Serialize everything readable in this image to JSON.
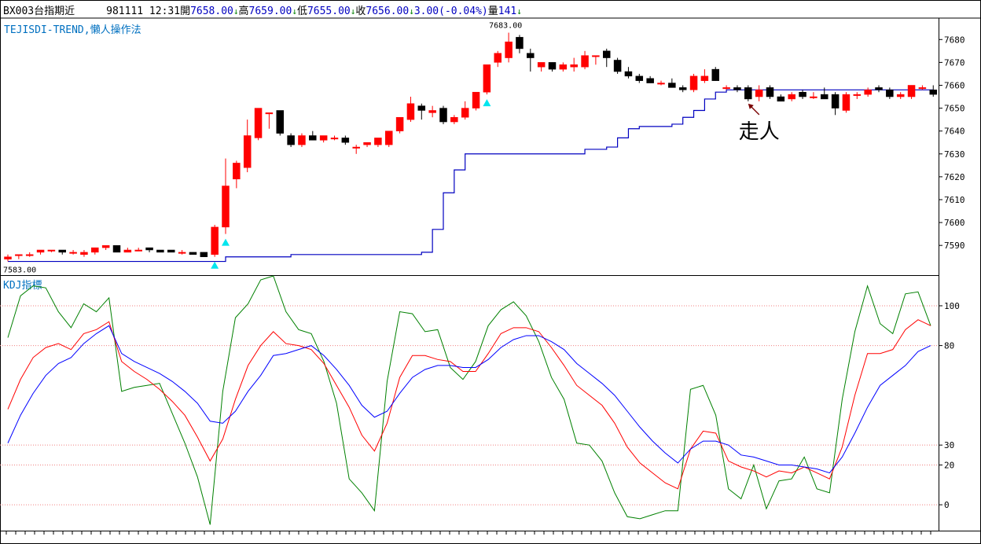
{
  "header": {
    "symbol": "BX003台指期近",
    "date_time": "981111 12:31",
    "open_label": "開",
    "open": "7658.00",
    "high_label": "高",
    "high": "7659.00",
    "low_label": "低",
    "low": "7655.00",
    "close_label": "收",
    "close": "7656.00",
    "change": "3.00(-0.04%)",
    "volume_label": "量",
    "volume": "141",
    "down_arrow": "↓"
  },
  "colors": {
    "up": "#ff0000",
    "down": "#000000",
    "trend": "#0000c0",
    "k": "#008000",
    "d": "#ff0000",
    "j": "#0000ff",
    "label": "#0070c0"
  },
  "chart_data": [
    {
      "type": "candlestick",
      "title": "TEJISDI-TREND,懶人操作法",
      "ylim": [
        7577,
        7688
      ],
      "yticks": [
        7590,
        7600,
        7610,
        7620,
        7630,
        7640,
        7650,
        7660,
        7670,
        7680
      ],
      "high_label": "7683.00",
      "low_label": "7583.00",
      "annotation": "走人",
      "candles": [
        [
          7584,
          7586,
          7583,
          7585
        ],
        [
          7586,
          7586,
          7584,
          7586
        ],
        [
          7586,
          7587,
          7585,
          7586
        ],
        [
          7587,
          7588,
          7586,
          7588
        ],
        [
          7588,
          7588,
          7587,
          7588
        ],
        [
          7588,
          7588,
          7586,
          7587
        ],
        [
          7587,
          7588,
          7586,
          7587
        ],
        [
          7586,
          7588,
          7585,
          7587
        ],
        [
          7587,
          7589,
          7586,
          7589
        ],
        [
          7589,
          7590,
          7588,
          7590
        ],
        [
          7590,
          7590,
          7587,
          7587
        ],
        [
          7587,
          7589,
          7587,
          7588
        ],
        [
          7588,
          7589,
          7588,
          7588
        ],
        [
          7589,
          7589,
          7587,
          7588
        ],
        [
          7588,
          7588,
          7587,
          7587
        ],
        [
          7588,
          7588,
          7587,
          7587
        ],
        [
          7587,
          7588,
          7586,
          7587
        ],
        [
          7587,
          7587,
          7586,
          7586
        ],
        [
          7587,
          7587,
          7585,
          7585
        ],
        [
          7586,
          7599,
          7585,
          7598
        ],
        [
          7598,
          7628,
          7595,
          7616
        ],
        [
          7619,
          7627,
          7615,
          7626
        ],
        [
          7624,
          7645,
          7622,
          7638
        ],
        [
          7637,
          7650,
          7636,
          7650
        ],
        [
          7648,
          7648,
          7641,
          7648
        ],
        [
          7649,
          7649,
          7638,
          7639
        ],
        [
          7638,
          7639,
          7633,
          7634
        ],
        [
          7634,
          7639,
          7633,
          7638
        ],
        [
          7638,
          7640,
          7636,
          7636
        ],
        [
          7636,
          7638,
          7635,
          7638
        ],
        [
          7637,
          7638,
          7636,
          7637
        ],
        [
          7637,
          7638,
          7634,
          7635
        ],
        [
          7633,
          7634,
          7630,
          7633
        ],
        [
          7634,
          7635,
          7633,
          7635
        ],
        [
          7634,
          7637,
          7633,
          7637
        ],
        [
          7634,
          7640,
          7633,
          7640
        ],
        [
          7640,
          7646,
          7639,
          7646
        ],
        [
          7645,
          7655,
          7644,
          7652
        ],
        [
          7651,
          7652,
          7645,
          7649
        ],
        [
          7648,
          7651,
          7646,
          7649
        ],
        [
          7650,
          7651,
          7643,
          7644
        ],
        [
          7644,
          7647,
          7643,
          7646
        ],
        [
          7646,
          7653,
          7645,
          7650
        ],
        [
          7650,
          7657,
          7649,
          7657
        ],
        [
          7657,
          7669,
          7656,
          7669
        ],
        [
          7670,
          7675,
          7668,
          7674
        ],
        [
          7672,
          7683,
          7670,
          7679
        ],
        [
          7681,
          7682,
          7674,
          7676
        ],
        [
          7674,
          7676,
          7666,
          7672
        ],
        [
          7668,
          7670,
          7666,
          7670
        ],
        [
          7670,
          7670,
          7666,
          7667
        ],
        [
          7667,
          7670,
          7666,
          7669
        ],
        [
          7668,
          7672,
          7666,
          7669
        ],
        [
          7668,
          7675,
          7667,
          7673
        ],
        [
          7673,
          7673,
          7669,
          7673
        ],
        [
          7675,
          7676,
          7668,
          7672
        ],
        [
          7671,
          7672,
          7665,
          7666
        ],
        [
          7666,
          7668,
          7663,
          7664
        ],
        [
          7664,
          7665,
          7661,
          7662
        ],
        [
          7663,
          7664,
          7661,
          7661
        ],
        [
          7661,
          7662,
          7660,
          7661
        ],
        [
          7661,
          7663,
          7659,
          7659
        ],
        [
          7659,
          7660,
          7657,
          7658
        ],
        [
          7658,
          7665,
          7657,
          7664
        ],
        [
          7662,
          7667,
          7661,
          7664
        ],
        [
          7667,
          7668,
          7662,
          7662
        ],
        [
          7659,
          7660,
          7658,
          7659
        ],
        [
          7659,
          7660,
          7657,
          7658
        ],
        [
          7659,
          7660,
          7653,
          7654
        ],
        [
          7655,
          7660,
          7653,
          7658
        ],
        [
          7659,
          7660,
          7654,
          7655
        ],
        [
          7655,
          7656,
          7653,
          7653
        ],
        [
          7654,
          7657,
          7653,
          7656
        ],
        [
          7657,
          7658,
          7654,
          7655
        ],
        [
          7655,
          7657,
          7654,
          7655
        ],
        [
          7656,
          7659,
          7654,
          7654
        ],
        [
          7656,
          7657,
          7647,
          7650
        ],
        [
          7649,
          7657,
          7648,
          7656
        ],
        [
          7656,
          7657,
          7654,
          7656
        ],
        [
          7656,
          7659,
          7655,
          7658
        ],
        [
          7659,
          7660,
          7657,
          7658
        ],
        [
          7658,
          7659,
          7654,
          7655
        ],
        [
          7655,
          7657,
          7654,
          7656
        ],
        [
          7655,
          7660,
          7654,
          7660
        ],
        [
          7659,
          7660,
          7658,
          7659
        ],
        [
          7658,
          7660,
          7655,
          7656
        ]
      ],
      "trend_line": [
        [
          0,
          7583
        ],
        [
          19,
          7583
        ],
        [
          20,
          7585
        ],
        [
          26,
          7586
        ],
        [
          38,
          7587
        ],
        [
          39,
          7597
        ],
        [
          40,
          7613
        ],
        [
          41,
          7623
        ],
        [
          42,
          7630
        ],
        [
          52,
          7630
        ],
        [
          53,
          7632
        ],
        [
          55,
          7633
        ],
        [
          56,
          7637
        ],
        [
          57,
          7641
        ],
        [
          58,
          7642
        ],
        [
          61,
          7643
        ],
        [
          62,
          7646
        ],
        [
          63,
          7649
        ],
        [
          64,
          7654
        ],
        [
          65,
          7657
        ],
        [
          66,
          7658
        ],
        [
          85,
          7658
        ]
      ],
      "signals": [
        19,
        20,
        44
      ]
    },
    {
      "type": "line",
      "title": "KDJ指標",
      "ylim": [
        -13,
        115
      ],
      "yticks": [
        0,
        20,
        30,
        80,
        100
      ],
      "series": [
        {
          "values": [
            84,
            105,
            110,
            109,
            97,
            89,
            101,
            97,
            104,
            57,
            59,
            60,
            61,
            46,
            31,
            14,
            -10,
            57,
            94,
            101,
            113,
            115,
            97,
            88,
            86,
            72,
            51,
            13,
            6,
            -3,
            62,
            97,
            96,
            87,
            88,
            69,
            63,
            72,
            90,
            98,
            102,
            95,
            82,
            64,
            53,
            31,
            30,
            22,
            6,
            -6,
            -7,
            -5,
            -3,
            -3,
            58,
            60,
            45,
            8,
            3,
            20,
            -2,
            12,
            13,
            24,
            8,
            6,
            53,
            87,
            110,
            91,
            86,
            106,
            107,
            90
          ]
        },
        {
          "values": [
            48,
            63,
            74,
            79,
            81,
            78,
            86,
            88,
            92,
            72,
            67,
            63,
            58,
            52,
            45,
            34,
            22,
            33,
            53,
            70,
            80,
            87,
            81,
            80,
            78,
            71,
            60,
            49,
            35,
            27,
            41,
            64,
            75,
            75,
            73,
            72,
            67,
            67,
            76,
            86,
            89,
            89,
            87,
            79,
            70,
            60,
            55,
            50,
            41,
            29,
            21,
            16,
            11,
            8,
            28,
            37,
            36,
            22,
            19,
            17,
            14,
            17,
            16,
            19,
            16,
            13,
            29,
            55,
            76,
            76,
            78,
            88,
            93,
            90
          ]
        },
        {
          "values": [
            31,
            45,
            56,
            65,
            71,
            74,
            81,
            86,
            90,
            76,
            72,
            69,
            66,
            62,
            57,
            51,
            42,
            41,
            47,
            57,
            65,
            75,
            76,
            78,
            80,
            75,
            68,
            60,
            50,
            44,
            47,
            56,
            64,
            68,
            70,
            70,
            69,
            69,
            73,
            79,
            83,
            85,
            85,
            82,
            78,
            71,
            66,
            61,
            55,
            47,
            39,
            32,
            26,
            21,
            28,
            32,
            32,
            30,
            25,
            24,
            22,
            20,
            20,
            19,
            18,
            16,
            24,
            36,
            49,
            60,
            65,
            70,
            77,
            80
          ]
        }
      ]
    }
  ]
}
